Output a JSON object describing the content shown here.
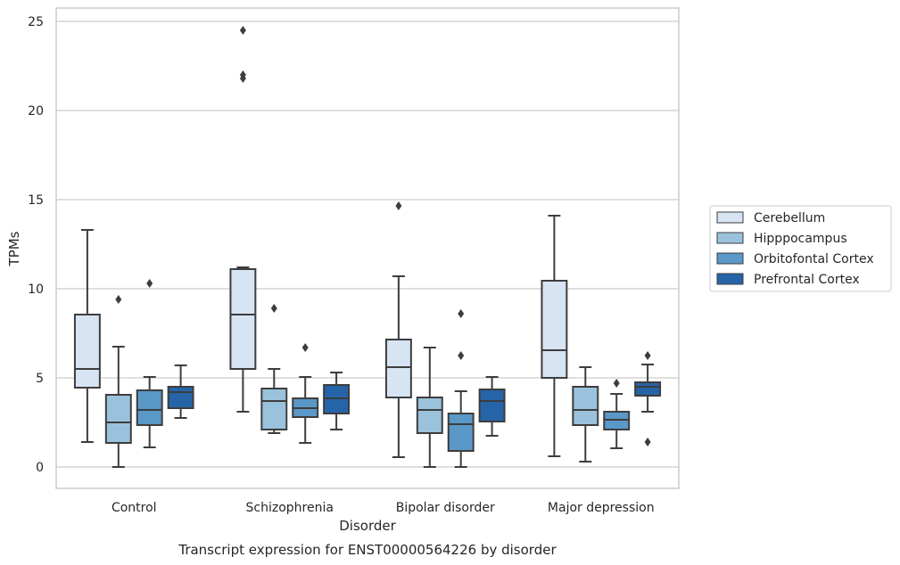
{
  "chart_data": {
    "type": "box",
    "xlabel": "Disorder",
    "ylabel": "TPMs",
    "caption": "Transcript expression for ENST00000564226 by disorder",
    "ylim": [
      -1.2,
      25.8
    ],
    "yticks": [
      0,
      5,
      10,
      15,
      20,
      25
    ],
    "grid": true,
    "legend_position": "right",
    "categories": [
      "Control",
      "Schizophrenia",
      "Bipolar disorder",
      "Major depression"
    ],
    "series": [
      {
        "name": "Cerebellum",
        "color": "#d6e4f3",
        "boxes": [
          {
            "whislo": 1.4,
            "q1": 4.45,
            "med": 5.5,
            "q3": 8.55,
            "whishi": 13.3,
            "fliers": []
          },
          {
            "whislo": 3.1,
            "q1": 5.5,
            "med": 8.55,
            "q3": 11.1,
            "whishi": 11.2,
            "fliers": [
              21.8,
              22.0,
              24.5
            ]
          },
          {
            "whislo": 0.55,
            "q1": 3.9,
            "med": 5.6,
            "q3": 7.15,
            "whishi": 10.7,
            "fliers": [
              14.65
            ]
          },
          {
            "whislo": 0.6,
            "q1": 5.0,
            "med": 6.55,
            "q3": 10.45,
            "whishi": 14.1,
            "fliers": []
          }
        ]
      },
      {
        "name": "Hipppocampus",
        "color": "#9ac2dc",
        "boxes": [
          {
            "whislo": 0.0,
            "q1": 1.35,
            "med": 2.5,
            "q3": 4.05,
            "whishi": 6.75,
            "fliers": [
              9.4
            ]
          },
          {
            "whislo": 1.9,
            "q1": 2.1,
            "med": 3.7,
            "q3": 4.4,
            "whishi": 5.5,
            "fliers": [
              8.9
            ]
          },
          {
            "whislo": 0.0,
            "q1": 1.9,
            "med": 3.2,
            "q3": 3.9,
            "whishi": 6.7,
            "fliers": []
          },
          {
            "whislo": 0.3,
            "q1": 2.35,
            "med": 3.2,
            "q3": 4.5,
            "whishi": 5.6,
            "fliers": []
          }
        ]
      },
      {
        "name": "Orbitofontal Cortex",
        "color": "#5a98c8",
        "boxes": [
          {
            "whislo": 1.1,
            "q1": 2.35,
            "med": 3.2,
            "q3": 4.3,
            "whishi": 5.05,
            "fliers": [
              10.3
            ]
          },
          {
            "whislo": 1.35,
            "q1": 2.8,
            "med": 3.3,
            "q3": 3.85,
            "whishi": 5.05,
            "fliers": [
              6.7
            ]
          },
          {
            "whislo": 0.0,
            "q1": 0.9,
            "med": 2.4,
            "q3": 3.0,
            "whishi": 4.25,
            "fliers": [
              6.25,
              8.6
            ]
          },
          {
            "whislo": 1.05,
            "q1": 2.1,
            "med": 2.65,
            "q3": 3.1,
            "whishi": 4.1,
            "fliers": [
              4.7
            ]
          }
        ]
      },
      {
        "name": "Prefrontal Cortex",
        "color": "#2664a8",
        "boxes": [
          {
            "whislo": 2.75,
            "q1": 3.3,
            "med": 4.2,
            "q3": 4.5,
            "whishi": 5.7,
            "fliers": []
          },
          {
            "whislo": 2.1,
            "q1": 3.0,
            "med": 3.85,
            "q3": 4.6,
            "whishi": 5.3,
            "fliers": []
          },
          {
            "whislo": 1.75,
            "q1": 2.55,
            "med": 3.7,
            "q3": 4.35,
            "whishi": 5.05,
            "fliers": []
          },
          {
            "whislo": 3.1,
            "q1": 4.0,
            "med": 4.5,
            "q3": 4.75,
            "whishi": 5.75,
            "fliers": [
              1.4,
              6.25
            ]
          }
        ]
      }
    ]
  }
}
